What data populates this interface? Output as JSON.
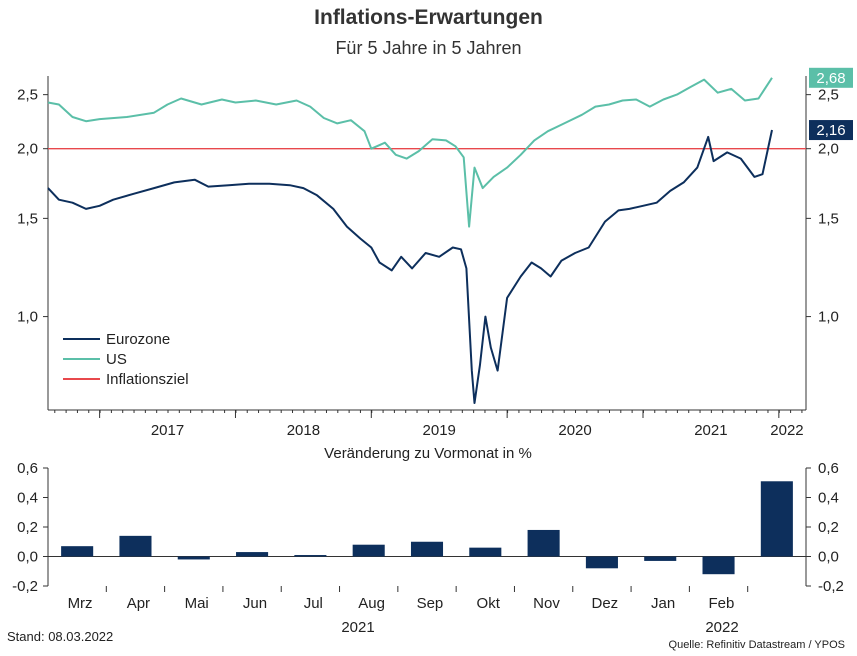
{
  "title": "Inflations-Erwartungen",
  "subtitle": "Für 5 Jahre in 5 Jahren",
  "footer": {
    "stand": "Stand: 08.03.2022",
    "source": "Quelle: Refinitiv Datastream / YPOS"
  },
  "colors": {
    "eurozone": "#0d2f5c",
    "us": "#5bbfa8",
    "target": "#e8484c",
    "bars": "#0d2f5c",
    "axis": "#333333"
  },
  "chart_data": [
    {
      "type": "line",
      "scale": "log",
      "ylim": [
        0.68,
        2.7
      ],
      "yticks": [
        1.0,
        1.5,
        2.0,
        2.5
      ],
      "ytick_labels": [
        "1,0",
        "1,5",
        "2,0",
        "2,5"
      ],
      "xlim": [
        2016.62,
        2022.2
      ],
      "xtick_labels": [
        "2017",
        "2018",
        "2019",
        "2020",
        "2021",
        "2022"
      ],
      "legend": [
        "Eurozone",
        "US",
        "Inflationsziel"
      ],
      "legend_position": "bottom-left",
      "last_values": {
        "us": "2,68",
        "eurozone": "2,16"
      },
      "inflation_target": 2.0,
      "series": [
        {
          "name": "Eurozone",
          "points": [
            [
              2016.62,
              1.7
            ],
            [
              2016.7,
              1.62
            ],
            [
              2016.8,
              1.6
            ],
            [
              2016.9,
              1.56
            ],
            [
              2017.0,
              1.58
            ],
            [
              2017.1,
              1.62
            ],
            [
              2017.25,
              1.66
            ],
            [
              2017.4,
              1.7
            ],
            [
              2017.55,
              1.74
            ],
            [
              2017.7,
              1.76
            ],
            [
              2017.8,
              1.71
            ],
            [
              2017.95,
              1.72
            ],
            [
              2018.1,
              1.73
            ],
            [
              2018.25,
              1.73
            ],
            [
              2018.4,
              1.72
            ],
            [
              2018.5,
              1.7
            ],
            [
              2018.6,
              1.65
            ],
            [
              2018.72,
              1.56
            ],
            [
              2018.82,
              1.45
            ],
            [
              2018.92,
              1.38
            ],
            [
              2019.0,
              1.33
            ],
            [
              2019.06,
              1.25
            ],
            [
              2019.15,
              1.21
            ],
            [
              2019.22,
              1.28
            ],
            [
              2019.3,
              1.22
            ],
            [
              2019.4,
              1.3
            ],
            [
              2019.5,
              1.28
            ],
            [
              2019.6,
              1.33
            ],
            [
              2019.66,
              1.32
            ],
            [
              2019.7,
              1.22
            ],
            [
              2019.74,
              0.8
            ],
            [
              2019.76,
              0.7
            ],
            [
              2019.8,
              0.82
            ],
            [
              2019.84,
              1.0
            ],
            [
              2019.88,
              0.88
            ],
            [
              2019.93,
              0.8
            ],
            [
              2020.0,
              1.08
            ],
            [
              2020.1,
              1.18
            ],
            [
              2020.18,
              1.25
            ],
            [
              2020.25,
              1.22
            ],
            [
              2020.32,
              1.18
            ],
            [
              2020.4,
              1.26
            ],
            [
              2020.5,
              1.3
            ],
            [
              2020.6,
              1.33
            ],
            [
              2020.72,
              1.48
            ],
            [
              2020.82,
              1.55
            ],
            [
              2020.9,
              1.56
            ],
            [
              2021.0,
              1.58
            ],
            [
              2021.1,
              1.6
            ],
            [
              2021.2,
              1.68
            ],
            [
              2021.3,
              1.74
            ],
            [
              2021.4,
              1.85
            ],
            [
              2021.48,
              2.1
            ],
            [
              2021.52,
              1.9
            ],
            [
              2021.62,
              1.97
            ],
            [
              2021.72,
              1.92
            ],
            [
              2021.82,
              1.78
            ],
            [
              2021.88,
              1.8
            ],
            [
              2021.95,
              2.16
            ]
          ]
        },
        {
          "name": "US",
          "points": [
            [
              2016.62,
              2.42
            ],
            [
              2016.7,
              2.4
            ],
            [
              2016.8,
              2.28
            ],
            [
              2016.9,
              2.24
            ],
            [
              2017.0,
              2.26
            ],
            [
              2017.2,
              2.28
            ],
            [
              2017.4,
              2.32
            ],
            [
              2017.5,
              2.4
            ],
            [
              2017.6,
              2.46
            ],
            [
              2017.75,
              2.4
            ],
            [
              2017.9,
              2.45
            ],
            [
              2018.0,
              2.42
            ],
            [
              2018.15,
              2.44
            ],
            [
              2018.3,
              2.4
            ],
            [
              2018.45,
              2.44
            ],
            [
              2018.55,
              2.38
            ],
            [
              2018.65,
              2.27
            ],
            [
              2018.75,
              2.22
            ],
            [
              2018.85,
              2.25
            ],
            [
              2018.95,
              2.15
            ],
            [
              2019.0,
              2.0
            ],
            [
              2019.1,
              2.05
            ],
            [
              2019.18,
              1.95
            ],
            [
              2019.26,
              1.92
            ],
            [
              2019.35,
              1.98
            ],
            [
              2019.45,
              2.08
            ],
            [
              2019.55,
              2.07
            ],
            [
              2019.62,
              2.02
            ],
            [
              2019.68,
              1.93
            ],
            [
              2019.72,
              1.45
            ],
            [
              2019.76,
              1.85
            ],
            [
              2019.82,
              1.7
            ],
            [
              2019.9,
              1.78
            ],
            [
              2020.0,
              1.85
            ],
            [
              2020.1,
              1.95
            ],
            [
              2020.2,
              2.07
            ],
            [
              2020.3,
              2.15
            ],
            [
              2020.42,
              2.22
            ],
            [
              2020.55,
              2.3
            ],
            [
              2020.65,
              2.38
            ],
            [
              2020.75,
              2.4
            ],
            [
              2020.85,
              2.44
            ],
            [
              2020.95,
              2.45
            ],
            [
              2021.05,
              2.38
            ],
            [
              2021.15,
              2.45
            ],
            [
              2021.25,
              2.5
            ],
            [
              2021.35,
              2.58
            ],
            [
              2021.45,
              2.66
            ],
            [
              2021.55,
              2.52
            ],
            [
              2021.65,
              2.56
            ],
            [
              2021.75,
              2.44
            ],
            [
              2021.85,
              2.46
            ],
            [
              2021.95,
              2.68
            ]
          ]
        },
        {
          "name": "Inflationsziel",
          "points": [
            [
              2016.62,
              2.0
            ],
            [
              2022.2,
              2.0
            ]
          ]
        }
      ]
    },
    {
      "type": "bar",
      "title": "Veränderung zu Vormonat in %",
      "categories": [
        "Mrz",
        "Apr",
        "Mai",
        "Jun",
        "Jul",
        "Aug",
        "Sep",
        "Okt",
        "Nov",
        "Dez",
        "Jan",
        "Feb",
        ""
      ],
      "values": [
        0.07,
        0.14,
        -0.02,
        0.03,
        0.01,
        0.08,
        0.1,
        0.06,
        0.18,
        -0.08,
        -0.03,
        -0.12,
        0.51
      ],
      "ylim": [
        -0.2,
        0.6
      ],
      "yticks": [
        -0.2,
        0.0,
        0.2,
        0.4,
        0.6
      ],
      "ytick_labels": [
        "-0,2",
        "0,0",
        "0,2",
        "0,4",
        "0,6"
      ],
      "year_labels": [
        "2021",
        "2022"
      ]
    }
  ]
}
